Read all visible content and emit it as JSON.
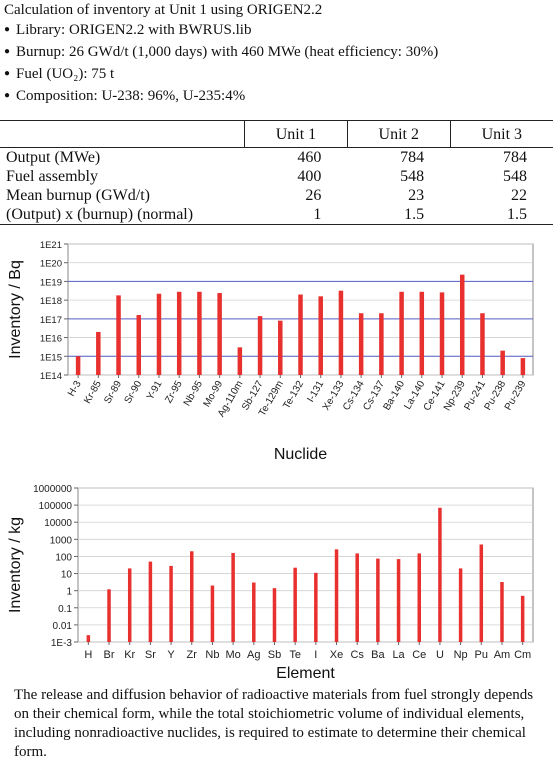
{
  "header": {
    "title": "Calculation of inventory at Unit 1 using ORIGEN2.2",
    "bullets": [
      "Library: ORIGEN2.2 with BWRUS.lib",
      "Burnup: 26 GWd/t (1,000 days) with 460 MWe (heat efficiency: 30%)",
      "Fuel (UO₂): 75 t",
      "Composition: U-238: 96%, U-235:4%"
    ]
  },
  "table": {
    "columns": [
      "",
      "Unit 1",
      "Unit 2",
      "Unit 3"
    ],
    "rows": [
      [
        "Output (MWe)",
        "460",
        "784",
        "784"
      ],
      [
        "Fuel assembly",
        "400",
        "548",
        "548"
      ],
      [
        "Mean burnup (GWd/t)",
        "26",
        "23",
        "22"
      ],
      [
        "(Output) x (burnup) (normal)",
        "1",
        "1.5",
        "1.5"
      ]
    ]
  },
  "chart_data": [
    {
      "type": "bar",
      "scale": "log",
      "xlabel": "Nuclide",
      "ylabel": "Inventory  / Bq",
      "ylim": [
        100000000000000.0,
        1e+21
      ],
      "ytick_labels": [
        "1E14",
        "1E15",
        "1E16",
        "1E17",
        "1E18",
        "1E19",
        "1E20",
        "1E21"
      ],
      "highlight_lines": [
        1000000000000000.0,
        1e+17,
        1e+19
      ],
      "bar_color": "#e8302e",
      "categories": [
        "H-3",
        "Kr-85",
        "Sr-89",
        "Sr-90",
        "Y-91",
        "Zr-95",
        "Nb-95",
        "Mo-99",
        "Ag-110m",
        "Sb-127",
        "Te-129m",
        "Te-132",
        "I-131",
        "Xe-133",
        "Cs-134",
        "Cs-137",
        "Ba-140",
        "La-140",
        "Ce-141",
        "Np-239",
        "Pu-241",
        "Pu-238",
        "Pu-239"
      ],
      "values": [
        1000000000000000.0,
        2e+16,
        1.8e+18,
        1.6e+17,
        2.2e+18,
        2.8e+18,
        2.8e+18,
        2.4e+18,
        3000000000000000.0,
        1.4e+17,
        8e+16,
        2e+18,
        1.6e+18,
        3.2e+18,
        2e+17,
        2e+17,
        2.8e+18,
        2.8e+18,
        2.6e+18,
        2.3e+19,
        2e+17,
        2000000000000000.0,
        800000000000000.0
      ]
    },
    {
      "type": "bar",
      "scale": "log",
      "xlabel": "Element",
      "ylabel": "Inventory  / kg",
      "ylim": [
        0.001,
        1000000
      ],
      "ytick_labels": [
        "1E-3",
        "0.01",
        "0.1",
        "1",
        "10",
        "100",
        "1000",
        "10000",
        "100000",
        "1000000"
      ],
      "bar_color": "#e8302e",
      "categories": [
        "H",
        "Br",
        "Kr",
        "Sr",
        "Y",
        "Zr",
        "Nb",
        "Mo",
        "Ag",
        "Sb",
        "Te",
        "I",
        "Xe",
        "Cs",
        "Ba",
        "La",
        "Ce",
        "U",
        "Np",
        "Pu",
        "Am",
        "Cm"
      ],
      "values": [
        0.0025,
        1.2,
        20,
        50,
        28,
        200,
        2,
        160,
        3,
        1.4,
        22,
        11,
        260,
        150,
        75,
        70,
        150,
        70000,
        20,
        500,
        3.2,
        0.5
      ]
    }
  ],
  "caption": "The release and diffusion behavior of radioactive materials from fuel strongly depends on their chemical form, while the total stoichiometric volume of individual elements, including nonradioactive nuclides, is required to estimate to determine their chemical form."
}
